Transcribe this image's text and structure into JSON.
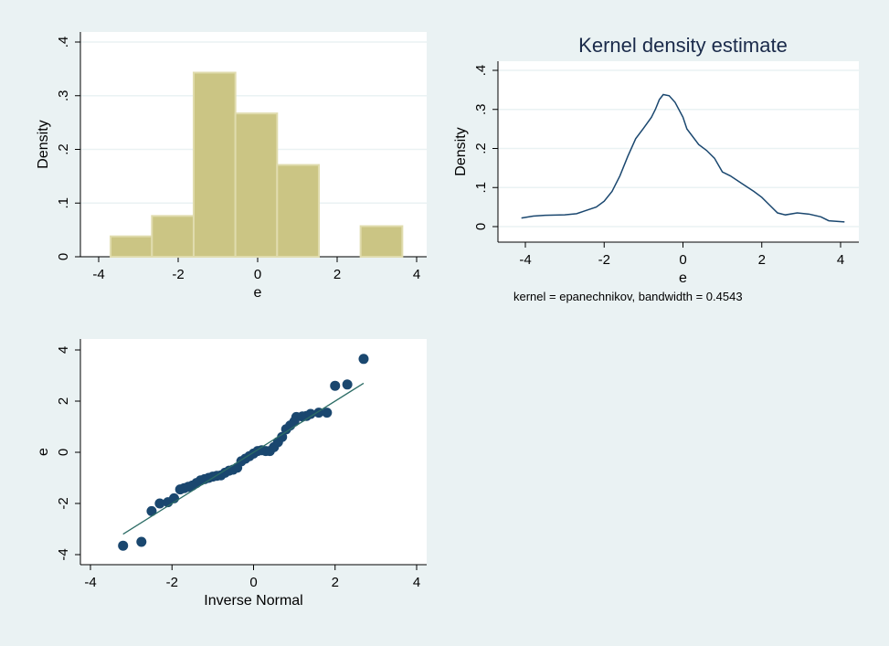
{
  "colors": {
    "background": "#eaf2f3",
    "bar_fill": "#cbc584",
    "bar_edge": "#e0dcae",
    "kde_line": "#1a476f",
    "qq_marker": "#1a476f",
    "qq_line": "#2d6d66",
    "grid": "#eaf2f3"
  },
  "chart_data": [
    {
      "type": "bar",
      "name": "histogram",
      "xlabel": "e",
      "ylabel": "Density",
      "xlim": [
        -4.5,
        4.3
      ],
      "ylim": [
        0,
        0.42
      ],
      "xticks": [
        -4,
        -2,
        0,
        2,
        4
      ],
      "xtick_labels": [
        "-4",
        "-2",
        "0",
        "2",
        "4"
      ],
      "yticks": [
        0,
        0.1,
        0.2,
        0.3,
        0.4
      ],
      "ytick_labels": [
        "0",
        ".1",
        ".2",
        ".3",
        ".4"
      ],
      "bins": [
        {
          "from": -3.7,
          "to": -2.66,
          "density": 0.038
        },
        {
          "from": -2.66,
          "to": -1.61,
          "density": 0.076
        },
        {
          "from": -1.61,
          "to": -0.56,
          "density": 0.343
        },
        {
          "from": -0.56,
          "to": 0.49,
          "density": 0.267
        },
        {
          "from": 0.49,
          "to": 1.54,
          "density": 0.171
        },
        {
          "from": 1.54,
          "to": 2.59,
          "density": 0.0
        },
        {
          "from": 2.59,
          "to": 3.64,
          "density": 0.057
        }
      ],
      "grid": true
    },
    {
      "type": "line",
      "name": "kernel-density",
      "title": "Kernel density estimate",
      "xlabel": "e",
      "ylabel": "Density",
      "note": "kernel = epanechnikov, bandwidth = 0.4543",
      "xlim": [
        -4.7,
        4.4
      ],
      "ylim": [
        -0.04,
        0.42
      ],
      "xticks": [
        -4,
        -2,
        0,
        2,
        4
      ],
      "xtick_labels": [
        "-4",
        "-2",
        "0",
        "2",
        "4"
      ],
      "yticks": [
        0,
        0.1,
        0.2,
        0.3,
        0.4
      ],
      "ytick_labels": [
        "0",
        ".1",
        ".2",
        ".3",
        ".4"
      ],
      "x": [
        -4.1,
        -3.8,
        -3.5,
        -3.0,
        -2.7,
        -2.5,
        -2.2,
        -2.0,
        -1.8,
        -1.6,
        -1.4,
        -1.2,
        -1.0,
        -0.8,
        -0.7,
        -0.6,
        -0.5,
        -0.35,
        -0.2,
        0.0,
        0.1,
        0.4,
        0.6,
        0.8,
        1.0,
        1.2,
        1.5,
        1.8,
        2.0,
        2.2,
        2.4,
        2.6,
        2.9,
        3.2,
        3.5,
        3.7,
        4.1
      ],
      "y": [
        0.022,
        0.027,
        0.029,
        0.03,
        0.033,
        0.04,
        0.05,
        0.065,
        0.09,
        0.13,
        0.18,
        0.225,
        0.252,
        0.28,
        0.3,
        0.325,
        0.338,
        0.335,
        0.318,
        0.28,
        0.25,
        0.21,
        0.195,
        0.175,
        0.14,
        0.13,
        0.11,
        0.09,
        0.075,
        0.055,
        0.035,
        0.03,
        0.035,
        0.032,
        0.025,
        0.015,
        0.012
      ],
      "grid": true
    },
    {
      "type": "scatter",
      "name": "qnorm",
      "xlabel": "Inverse Normal",
      "ylabel": "e",
      "xlim": [
        -4.4,
        4.4
      ],
      "ylim": [
        -4.4,
        4.4
      ],
      "xticks": [
        -4,
        -2,
        0,
        2,
        4
      ],
      "xtick_labels": [
        "-4",
        "-2",
        "0",
        "2",
        "4"
      ],
      "yticks": [
        -4,
        -2,
        0,
        2,
        4
      ],
      "ytick_labels": [
        "-4",
        "-2",
        "0",
        "2",
        "4"
      ],
      "points": [
        [
          -3.2,
          -3.65
        ],
        [
          -2.75,
          -3.5
        ],
        [
          -2.5,
          -2.3
        ],
        [
          -2.3,
          -2.0
        ],
        [
          -2.1,
          -1.95
        ],
        [
          -1.95,
          -1.8
        ],
        [
          -1.8,
          -1.45
        ],
        [
          -1.7,
          -1.4
        ],
        [
          -1.6,
          -1.35
        ],
        [
          -1.5,
          -1.3
        ],
        [
          -1.4,
          -1.2
        ],
        [
          -1.3,
          -1.1
        ],
        [
          -1.2,
          -1.05
        ],
        [
          -1.1,
          -1.0
        ],
        [
          -1.0,
          -0.95
        ],
        [
          -0.9,
          -0.92
        ],
        [
          -0.8,
          -0.9
        ],
        [
          -0.7,
          -0.8
        ],
        [
          -0.6,
          -0.72
        ],
        [
          -0.5,
          -0.68
        ],
        [
          -0.4,
          -0.6
        ],
        [
          -0.3,
          -0.35
        ],
        [
          -0.2,
          -0.25
        ],
        [
          -0.1,
          -0.15
        ],
        [
          0.0,
          -0.05
        ],
        [
          0.1,
          0.05
        ],
        [
          0.2,
          0.08
        ],
        [
          0.3,
          0.05
        ],
        [
          0.4,
          0.05
        ],
        [
          0.5,
          0.2
        ],
        [
          0.6,
          0.4
        ],
        [
          0.7,
          0.6
        ],
        [
          0.8,
          0.9
        ],
        [
          0.9,
          1.05
        ],
        [
          1.0,
          1.2
        ],
        [
          1.05,
          1.38
        ],
        [
          1.2,
          1.4
        ],
        [
          1.3,
          1.42
        ],
        [
          1.4,
          1.5
        ],
        [
          1.6,
          1.55
        ],
        [
          1.8,
          1.55
        ],
        [
          2.0,
          2.6
        ],
        [
          2.3,
          2.65
        ],
        [
          2.7,
          3.65
        ]
      ],
      "fit_line": [
        [
          -3.2,
          -3.2
        ],
        [
          2.7,
          2.7
        ]
      ]
    }
  ]
}
